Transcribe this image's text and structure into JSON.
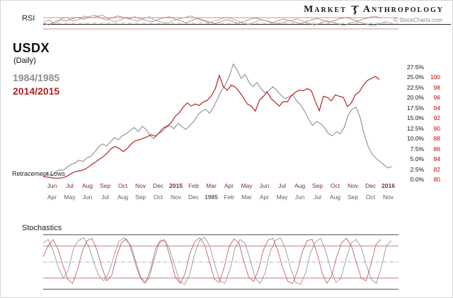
{
  "header": {
    "brand_first": "Market",
    "brand_second": "Anthropology",
    "credit": "© StockCharts.com"
  },
  "colors": {
    "gray_series": "#8e8e8e",
    "red_series": "#b22222",
    "axis_price_red": "#cc0000",
    "ref_maroon": "#b07070",
    "ref_dash": "#999999",
    "x_row_2014": "#7a2e2e",
    "x_row_1984": "#606060"
  },
  "chart_data": [
    {
      "id": "rsi",
      "type": "line",
      "title": "RSI",
      "ylim": [
        0,
        100
      ],
      "grid": false,
      "ref_lines": [
        {
          "value": 70,
          "style": "solid",
          "color": "#b07070"
        },
        {
          "value": 50,
          "style": "dashdot",
          "color": "#999999"
        },
        {
          "value": 30,
          "style": "solid",
          "color": "#b07070"
        }
      ],
      "series": [
        {
          "name": "RSI 1984/1985",
          "color": "#9a9a9a",
          "width": 0.8,
          "span": 0.98,
          "values": [
            55,
            62,
            48,
            66,
            71,
            58,
            63,
            76,
            69,
            73,
            80,
            66,
            55,
            61,
            71,
            63,
            58,
            67,
            73,
            60,
            54,
            50,
            59,
            66,
            71,
            76,
            68,
            60,
            52,
            58,
            65,
            71,
            66,
            58,
            50,
            45,
            56,
            63,
            58,
            52,
            48,
            56,
            61,
            66,
            58,
            50,
            44,
            51,
            59,
            54,
            48,
            42,
            51,
            57,
            52,
            46,
            40,
            49,
            56,
            50
          ]
        },
        {
          "name": "RSI 2014/2015",
          "color": "#c46a6a",
          "width": 0.8,
          "span": 0.95,
          "values": [
            50,
            44,
            56,
            63,
            58,
            66,
            71,
            64,
            73,
            79,
            70,
            62,
            69,
            76,
            71,
            65,
            73,
            66,
            60,
            55,
            63,
            69,
            73,
            66,
            58,
            52,
            61,
            67,
            62,
            55,
            48,
            56,
            63,
            58,
            50,
            56,
            63,
            69,
            64,
            58,
            52,
            59,
            65,
            60,
            54,
            48,
            56,
            63,
            67,
            60,
            54,
            61,
            67,
            71,
            64,
            58,
            65,
            71,
            75,
            68
          ]
        }
      ]
    },
    {
      "id": "usdx",
      "type": "line",
      "title": "USDX",
      "subtitle": "(Daily)",
      "annotation": "Retracement Lows",
      "ylim_pct": [
        0,
        29
      ],
      "grid": false,
      "legend_position": "top-left",
      "right_axis_pct": [
        "27.5%",
        "25.0%",
        "22.5%",
        "20.0%",
        "17.5%",
        "15.0%",
        "12.5%",
        "10.0%",
        "7.5%",
        "5.0%",
        "2.5%",
        "0.0%"
      ],
      "right_axis_price": [
        "100",
        "98",
        "96",
        "94",
        "92",
        "90",
        "88",
        "86",
        "84",
        "82",
        "80"
      ],
      "price_baseline": 80,
      "x_labels_2014": [
        "Jun",
        "Jul",
        "Aug",
        "Sep",
        "Oct",
        "Nov",
        "Dec",
        "2015",
        "Feb",
        "Mar",
        "Apr",
        "May",
        "Jun",
        "Jul",
        "Aug",
        "Sep",
        "Oct",
        "Nov",
        "Dec",
        "2016"
      ],
      "x_labels_1984": [
        "Apr",
        "May",
        "Jun",
        "Jul",
        "Aug",
        "Sep",
        "Oct",
        "Nov",
        "Dec",
        "1985",
        "Feb",
        "Mar",
        "Apr",
        "May",
        "Jun",
        "Jul",
        "Aug",
        "Sep",
        "Oct",
        "Nov"
      ],
      "series": [
        {
          "name": "1984/1985",
          "unit": "pct",
          "color": "#8e8e8e",
          "width": 1.1,
          "span": 0.985,
          "values": [
            0.5,
            1.2,
            0.8,
            1.5,
            2.2,
            2.0,
            2.8,
            3.5,
            3.8,
            4.5,
            4.2,
            5.0,
            5.5,
            6.5,
            7.8,
            8.5,
            8.0,
            9.0,
            10.0,
            9.5,
            10.5,
            11.0,
            11.8,
            12.5,
            11.5,
            12.8,
            12.0,
            10.5,
            9.8,
            11.0,
            11.5,
            12.5,
            13.0,
            12.2,
            13.5,
            12.8,
            12.0,
            13.0,
            14.0,
            15.5,
            16.5,
            17.0,
            16.0,
            17.5,
            19.5,
            21.5,
            23.0,
            25.0,
            28.0,
            26.5,
            24.5,
            25.5,
            23.5,
            22.5,
            23.5,
            22.0,
            21.0,
            21.5,
            22.5,
            21.5,
            20.5,
            19.5,
            20.0,
            20.5,
            19.0,
            18.0,
            16.5,
            14.5,
            13.0,
            14.0,
            13.5,
            12.5,
            11.0,
            10.5,
            11.5,
            11.0,
            12.5,
            15.5,
            17.0,
            17.5,
            15.0,
            11.0,
            8.0,
            6.0,
            5.0,
            4.2,
            3.4,
            2.6,
            3.0
          ]
        },
        {
          "name": "2014/2015",
          "unit": "price",
          "baseline": 80,
          "color": "#b22222",
          "width": 1.2,
          "span": 0.95,
          "values": [
            80.4,
            80.3,
            80.2,
            80.1,
            80.1,
            80.2,
            80.5,
            81.0,
            81.4,
            81.5,
            81.7,
            82.1,
            82.7,
            83.2,
            83.8,
            84.3,
            85.0,
            85.9,
            86.3,
            85.9,
            85.3,
            85.9,
            86.8,
            87.4,
            87.6,
            87.9,
            88.2,
            88.6,
            88.3,
            89.0,
            89.9,
            90.3,
            91.0,
            92.2,
            92.9,
            94.0,
            94.8,
            94.2,
            94.6,
            94.3,
            95.0,
            95.3,
            96.2,
            97.6,
            100.2,
            98.0,
            97.3,
            98.3,
            97.9,
            97.0,
            95.9,
            94.6,
            94.2,
            93.2,
            95.3,
            96.1,
            96.9,
            95.6,
            94.9,
            94.2,
            95.1,
            95.0,
            96.2,
            96.9,
            97.3,
            97.2,
            97.6,
            97.2,
            95.1,
            93.3,
            96.1,
            95.9,
            95.2,
            96.4,
            96.1,
            95.9,
            94.1,
            94.8,
            96.4,
            97.0,
            98.3,
            99.2,
            99.6,
            100.0,
            99.4
          ]
        }
      ]
    },
    {
      "id": "stochastics",
      "type": "line",
      "title": "Stochastics",
      "ylim": [
        0,
        100
      ],
      "grid": false,
      "ref_lines": [
        {
          "value": 80,
          "style": "solid",
          "color": "#b07070"
        },
        {
          "value": 50,
          "style": "dashdot",
          "color": "#999999"
        },
        {
          "value": 20,
          "style": "solid",
          "color": "#b07070"
        }
      ],
      "series": [
        {
          "name": "Stochastics 1984/1985",
          "color": "#8e8e8e",
          "width": 0.8,
          "span": 0.98,
          "values": [
            85,
            92,
            70,
            40,
            20,
            35,
            75,
            90,
            95,
            80,
            50,
            25,
            15,
            30,
            60,
            88,
            95,
            85,
            55,
            25,
            10,
            20,
            55,
            85,
            92,
            75,
            45,
            15,
            8,
            25,
            65,
            90,
            96,
            80,
            45,
            15,
            10,
            35,
            75,
            92,
            85,
            55,
            20,
            10,
            30,
            70,
            90,
            95,
            75,
            40,
            12,
            8,
            30,
            68,
            88,
            94,
            70,
            35,
            12,
            20,
            55,
            85,
            92,
            78,
            45,
            18,
            10,
            40,
            80,
            90
          ]
        },
        {
          "name": "Stochastics 2014/2015",
          "color": "#c05050",
          "width": 0.8,
          "span": 0.95,
          "values": [
            60,
            80,
            92,
            75,
            45,
            18,
            10,
            35,
            70,
            90,
            94,
            72,
            40,
            15,
            25,
            60,
            86,
            93,
            78,
            48,
            20,
            12,
            38,
            75,
            91,
            88,
            58,
            22,
            10,
            28,
            66,
            88,
            95,
            82,
            50,
            18,
            12,
            40,
            78,
            93,
            86,
            52,
            22,
            14,
            35,
            72,
            91,
            94,
            70,
            38,
            14,
            10,
            34,
            70,
            90,
            92,
            66,
            30,
            10,
            25,
            60,
            86,
            94,
            80,
            50,
            20,
            15,
            45,
            82,
            92
          ]
        }
      ]
    }
  ]
}
